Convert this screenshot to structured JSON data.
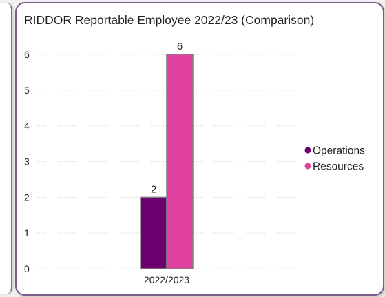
{
  "chart_data": {
    "type": "bar",
    "title": "RIDDOR Reportable Employee 2022/23 (Comparison)",
    "categories": [
      "2022/2023"
    ],
    "series": [
      {
        "name": "Operations",
        "values": [
          2
        ],
        "color": "#6b006e"
      },
      {
        "name": "Resources",
        "values": [
          6
        ],
        "color": "#e040a0"
      }
    ],
    "y_ticks": [
      "0",
      "1",
      "2",
      "3",
      "4",
      "5",
      "6"
    ],
    "data_labels": [
      "2",
      "6"
    ],
    "ylim": [
      0,
      6
    ],
    "grid": true,
    "legend_position": "right"
  }
}
